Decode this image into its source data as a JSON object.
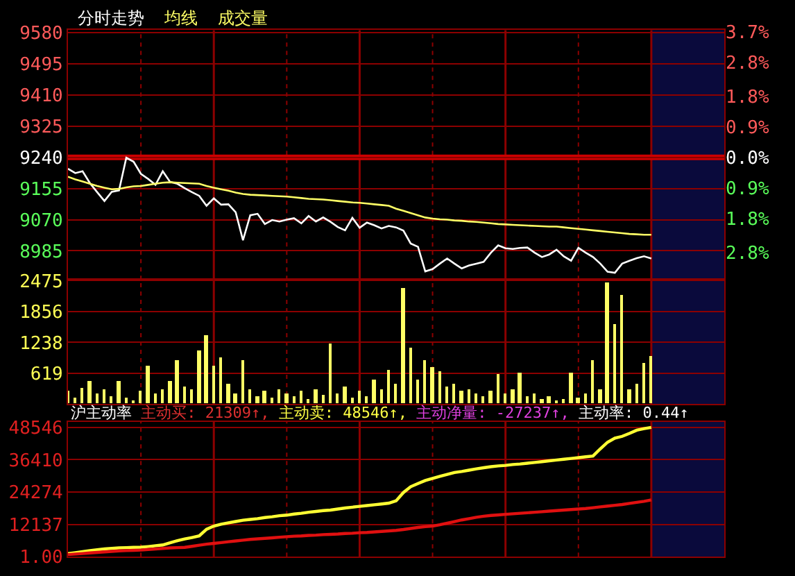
{
  "chart_data": [
    {
      "type": "line",
      "categories": [
        null,
        null,
        null,
        null,
        null,
        null,
        null,
        null,
        null,
        null,
        null,
        null,
        null,
        null,
        null,
        null,
        null,
        null,
        null,
        null,
        null,
        null,
        null,
        null,
        null,
        null,
        null,
        null,
        null,
        null,
        null,
        null,
        null,
        null,
        null,
        null,
        null,
        null,
        null,
        null,
        null,
        null,
        null,
        null,
        null,
        null,
        null,
        null,
        null,
        null,
        null,
        null,
        null,
        null,
        null,
        null,
        null,
        null,
        null,
        null,
        null,
        null,
        null,
        null,
        null,
        null,
        null,
        null,
        null,
        null,
        null,
        null,
        null,
        null,
        null,
        null,
        null,
        null,
        null,
        null,
        null
      ],
      "series": [
        {
          "name": "分时走势",
          "color": "#ffffff",
          "values": [
            9209,
            9197,
            9202,
            9170,
            9145,
            9121,
            9146,
            9150,
            9239,
            9228,
            9195,
            9181,
            9165,
            9202,
            9173,
            9168,
            9156,
            9145,
            9135,
            9108,
            9128,
            9111,
            9112,
            9090,
            9014,
            9082,
            9086,
            9058,
            9069,
            9065,
            9070,
            9074,
            9060,
            9080,
            9065,
            9076,
            9064,
            9050,
            9041,
            9075,
            9048,
            9062,
            9055,
            9046,
            9053,
            9049,
            9040,
            9005,
            8996,
            8929,
            8935,
            8950,
            8964,
            8950,
            8937,
            8945,
            8950,
            8955,
            8980,
            9000,
            8992,
            8990,
            8993,
            8994,
            8980,
            8968,
            8975,
            8988,
            8970,
            8958,
            8993,
            8980,
            8968,
            8950,
            8928,
            8925,
            8950,
            8958,
            8965,
            8970,
            8964
          ]
        },
        {
          "name": "均线",
          "color": "#ffff66",
          "values": [
            9187,
            9180,
            9174,
            9168,
            9162,
            9157,
            9153,
            9154,
            9158,
            9161,
            9162,
            9165,
            9168,
            9171,
            9172,
            9171,
            9170,
            9169,
            9168,
            9162,
            9157,
            9153,
            9149,
            9144,
            9140,
            9138,
            9137,
            9136,
            9135,
            9134,
            9133,
            9131,
            9129,
            9127,
            9126,
            9125,
            9123,
            9121,
            9119,
            9117,
            9116,
            9114,
            9112,
            9110,
            9108,
            9100,
            9094,
            9088,
            9082,
            9076,
            9073,
            9071,
            9070,
            9068,
            9067,
            9065,
            9064,
            9062,
            9060,
            9058,
            9057,
            9056,
            9055,
            9054,
            9053,
            9052,
            9051,
            9051,
            9049,
            9047,
            9045,
            9043,
            9041,
            9039,
            9037,
            9035,
            9033,
            9031,
            9030,
            9029,
            9029
          ]
        }
      ],
      "ylim": [
        8906,
        9587
      ],
      "yticks": [
        9580,
        9495,
        9410,
        9325,
        9240,
        9155,
        9070,
        8985
      ],
      "y2lim": [
        -3.61,
        3.76
      ],
      "y2ticks": [
        {
          "value": 3.7,
          "label": "3.7%"
        },
        {
          "value": 2.8,
          "label": "2.8%"
        },
        {
          "value": 1.8,
          "label": "1.8%"
        },
        {
          "value": 0.9,
          "label": "0.9%"
        },
        {
          "value": 0.0,
          "label": "0.0%"
        },
        {
          "value": -0.9,
          "label": "0.9%"
        },
        {
          "value": -1.8,
          "label": "1.8%"
        },
        {
          "value": -2.8,
          "label": "2.8%"
        }
      ],
      "grid": true,
      "ref_lines": [
        {
          "axis": "y",
          "value": 9240,
          "color": "#cc0000"
        }
      ]
    },
    {
      "type": "bar",
      "categories": [
        null,
        null,
        null,
        null,
        null,
        null,
        null,
        null,
        null,
        null,
        null,
        null,
        null,
        null,
        null,
        null,
        null,
        null,
        null,
        null,
        null,
        null,
        null,
        null,
        null,
        null,
        null,
        null,
        null,
        null,
        null,
        null,
        null,
        null,
        null,
        null,
        null,
        null,
        null,
        null,
        null,
        null,
        null,
        null,
        null,
        null,
        null,
        null,
        null,
        null,
        null,
        null,
        null,
        null,
        null,
        null,
        null,
        null,
        null,
        null,
        null,
        null,
        null,
        null,
        null,
        null,
        null,
        null,
        null,
        null,
        null,
        null,
        null,
        null,
        null,
        null,
        null,
        null,
        null,
        null,
        null
      ],
      "series": [
        {
          "name": "成交量",
          "color": "#ffff66",
          "values": [
            250,
            120,
            330,
            468,
            200,
            300,
            150,
            468,
            120,
            80,
            250,
            764,
            200,
            300,
            450,
            872,
            350,
            280,
            1087,
            1383,
            764,
            925,
            400,
            200,
            872,
            300,
            150,
            250,
            120,
            300,
            200,
            150,
            260,
            100,
            300,
            180,
            1221,
            200,
            350,
            120,
            250,
            150,
            495,
            300,
            683,
            400,
            2332,
            1140,
            500,
            872,
            737,
            664,
            350,
            400,
            250,
            300,
            200,
            150,
            250,
            603,
            200,
            300,
            630,
            150,
            200,
            100,
            150,
            80,
            100,
            630,
            120,
            200,
            872,
            300,
            2450,
            1606,
            2190,
            300,
            400,
            826,
            960
          ]
        }
      ],
      "ylim": [
        0,
        2500
      ],
      "yticks": [
        2475,
        1856,
        1238,
        619
      ],
      "grid": true
    },
    {
      "type": "line",
      "title": "沪主动率",
      "annotations": [
        "主动买: 21309↑,",
        "主动卖: 48546↑,",
        "主动净量: -27237↑,",
        "主动率: 0.44↑"
      ],
      "categories": [
        null,
        null,
        null,
        null,
        null,
        null,
        null,
        null,
        null,
        null,
        null,
        null,
        null,
        null,
        null,
        null,
        null,
        null,
        null,
        null,
        null,
        null,
        null,
        null,
        null,
        null,
        null,
        null,
        null,
        null,
        null,
        null,
        null,
        null,
        null,
        null,
        null,
        null,
        null,
        null,
        null,
        null,
        null,
        null,
        null,
        null,
        null,
        null,
        null,
        null,
        null,
        null,
        null,
        null,
        null,
        null,
        null,
        null,
        null,
        null,
        null,
        null,
        null,
        null,
        null,
        null,
        null,
        null,
        null,
        null,
        null,
        null,
        null,
        null,
        null,
        null,
        null,
        null,
        null,
        null,
        null
      ],
      "series": [
        {
          "color": "#ffff33",
          "values": [
            1130,
            1500,
            1900,
            2300,
            2600,
            2900,
            3100,
            3300,
            3400,
            3500,
            3550,
            3800,
            4100,
            4400,
            5200,
            6000,
            6650,
            7200,
            7800,
            10300,
            11500,
            12200,
            12700,
            13200,
            13700,
            14000,
            14300,
            14700,
            15000,
            15400,
            15600,
            16000,
            16300,
            16700,
            17000,
            17300,
            17500,
            17900,
            18300,
            18600,
            18900,
            19200,
            19500,
            19800,
            20100,
            21000,
            24100,
            26300,
            27500,
            28600,
            29400,
            30200,
            30900,
            31600,
            32000,
            32500,
            33000,
            33400,
            33800,
            34100,
            34300,
            34600,
            34800,
            35100,
            35400,
            35700,
            36000,
            36300,
            36600,
            36900,
            37200,
            37500,
            37800,
            40500,
            43000,
            44500,
            45200,
            46300,
            47500,
            48100,
            48546
          ]
        },
        {
          "color": "#e01010",
          "values": [
            800,
            1000,
            1200,
            1400,
            1600,
            1800,
            2000,
            2200,
            2300,
            2400,
            2500,
            2700,
            2900,
            3100,
            3300,
            3400,
            3500,
            3900,
            4300,
            4700,
            5000,
            5300,
            5600,
            5900,
            6200,
            6500,
            6700,
            6900,
            7100,
            7300,
            7500,
            7700,
            7800,
            8000,
            8100,
            8300,
            8400,
            8500,
            8700,
            8800,
            9000,
            9100,
            9300,
            9500,
            9700,
            9900,
            10200,
            10600,
            11000,
            11300,
            11500,
            12000,
            12600,
            13200,
            13800,
            14300,
            14800,
            15200,
            15500,
            15700,
            15900,
            16100,
            16300,
            16500,
            16700,
            16900,
            17100,
            17300,
            17500,
            17700,
            17900,
            18100,
            18400,
            18700,
            19000,
            19300,
            19600,
            20000,
            20400,
            20800,
            21309
          ]
        }
      ],
      "ylim": [
        0,
        50720
      ],
      "yticks": [
        48546,
        36410,
        24274,
        12137,
        {
          "value": 1,
          "label": "1.00"
        }
      ],
      "grid": true
    }
  ]
}
